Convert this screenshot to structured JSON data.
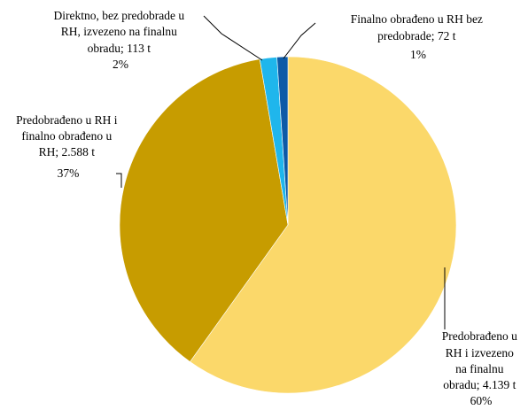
{
  "chart_data": {
    "type": "pie",
    "title": "",
    "start_angle_deg": 0,
    "direction": "clockwise",
    "slices": [
      {
        "label_lines": [
          "Predobrađeno u",
          "RH i izvezeno",
          "na finalnu",
          "obradu; 4.139 t",
          "60%"
        ],
        "value": 4139,
        "percent": 60,
        "color": "#fbd86a"
      },
      {
        "label_lines": [
          "Predobrađeno u RH i",
          "finalno  obrađeno u",
          "RH; 2.588 t",
          "37%"
        ],
        "value": 2588,
        "percent": 37,
        "color": "#c79c00"
      },
      {
        "label_lines": [
          "Direktno,  bez predobrade u",
          "RH, izvezeno  na finalnu",
          "obradu; 113 t",
          "2%"
        ],
        "value": 113,
        "percent": 2,
        "color": "#1fb6ec"
      },
      {
        "label_lines": [
          "Finalno  obrađeno u RH bez",
          "predobrade; 72 t",
          "1%"
        ],
        "value": 72,
        "percent": 1,
        "color": "#0d5aa7"
      }
    ]
  }
}
